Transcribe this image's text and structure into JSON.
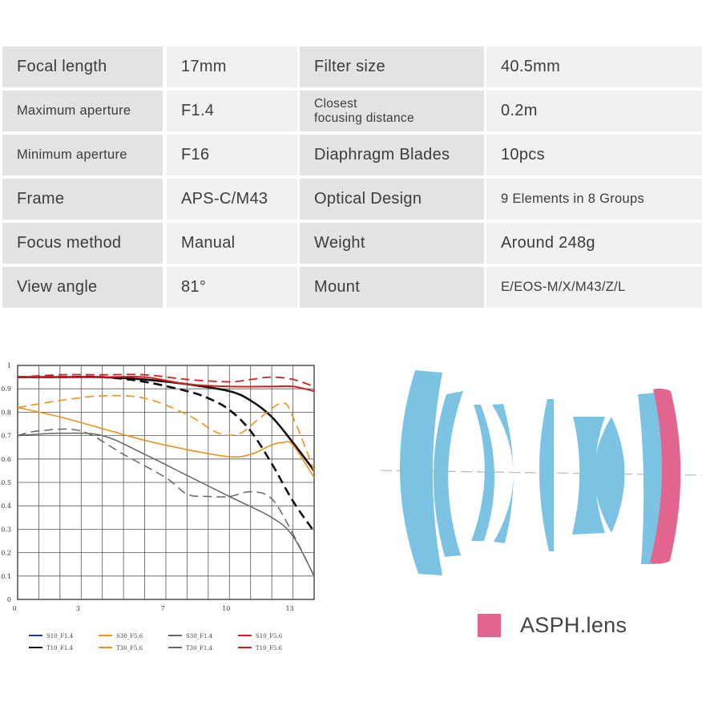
{
  "specs": [
    [
      {
        "t": "Focal length"
      },
      {
        "t": "17mm"
      },
      {
        "t": "Filter size"
      },
      {
        "t": "40.5mm"
      }
    ],
    [
      {
        "t": "Maximum aperture",
        "s": 1
      },
      {
        "t": "F1.4"
      },
      {
        "t": "Closest\nfocusing distance",
        "m": 1
      },
      {
        "t": "0.2m"
      }
    ],
    [
      {
        "t": "Minimum aperture",
        "s": 1
      },
      {
        "t": "F16"
      },
      {
        "t": "Diaphragm Blades"
      },
      {
        "t": "10pcs"
      }
    ],
    [
      {
        "t": "Frame"
      },
      {
        "t": "APS-C/M43"
      },
      {
        "t": "Optical Design"
      },
      {
        "t": "9 Elements in 8 Groups",
        "s": 1
      }
    ],
    [
      {
        "t": "Focus method"
      },
      {
        "t": "Manual"
      },
      {
        "t": "Weight"
      },
      {
        "t": "Around 248g"
      }
    ],
    [
      {
        "t": "View angle"
      },
      {
        "t": "81°"
      },
      {
        "t": "Mount"
      },
      {
        "t": "E/EOS-M/X/M43/Z/L",
        "s": 1
      }
    ]
  ],
  "colors": {
    "cell_dark": "#e3e3e3",
    "cell_light": "#f1f1f1",
    "lens_blue": "#7cc3e3",
    "asph_pink": "#e2658f"
  },
  "chart_data": {
    "type": "line",
    "title": "",
    "xlabel": "",
    "ylabel": "",
    "xlim": [
      0,
      14
    ],
    "ylim": [
      0,
      1
    ],
    "x_ticks": [
      "0",
      "3",
      "7",
      "10",
      "13"
    ],
    "x_tick_values": [
      0,
      3,
      7,
      10,
      13
    ],
    "y_ticks": [
      "0",
      "0.1",
      "0.2",
      "0.3",
      "0.4",
      "0.5",
      "0.6",
      "0.7",
      "0.8",
      "0.9",
      "1"
    ],
    "series": [
      {
        "name": "S10_F1.4",
        "color": "#111111",
        "dash": false,
        "width": 2.6,
        "x": [
          0,
          2,
          4,
          6,
          8,
          10,
          11,
          12,
          13,
          14
        ],
        "y": [
          0.95,
          0.95,
          0.95,
          0.94,
          0.92,
          0.89,
          0.85,
          0.78,
          0.67,
          0.55
        ]
      },
      {
        "name": "T10_F1.4",
        "color": "#111111",
        "dash": true,
        "width": 2.6,
        "x": [
          0,
          2,
          4,
          6,
          8,
          9,
          10,
          11,
          12,
          13,
          14
        ],
        "y": [
          0.95,
          0.95,
          0.95,
          0.93,
          0.89,
          0.86,
          0.81,
          0.72,
          0.58,
          0.42,
          0.29
        ]
      },
      {
        "name": "S30_F5.6",
        "color": "#f0901e",
        "dash": false,
        "width": 1.6,
        "x": [
          0,
          2,
          4,
          6,
          8,
          10,
          11,
          12,
          12.5,
          13,
          14
        ],
        "y": [
          0.82,
          0.78,
          0.73,
          0.68,
          0.64,
          0.61,
          0.62,
          0.66,
          0.67,
          0.66,
          0.52
        ]
      },
      {
        "name": "T30_F5.6",
        "color": "#f0901e",
        "dash": true,
        "width": 1.6,
        "x": [
          0,
          2,
          4,
          6,
          8,
          9.5,
          10.5,
          11.5,
          12.5,
          13,
          14
        ],
        "y": [
          0.82,
          0.85,
          0.87,
          0.86,
          0.79,
          0.71,
          0.71,
          0.78,
          0.84,
          0.78,
          0.55
        ]
      },
      {
        "name": "S30_F1.4",
        "color": "#666666",
        "dash": false,
        "width": 1.5,
        "x": [
          0,
          2,
          4,
          6,
          8,
          10,
          12,
          13,
          14
        ],
        "y": [
          0.7,
          0.71,
          0.7,
          0.62,
          0.53,
          0.44,
          0.35,
          0.27,
          0.1
        ]
      },
      {
        "name": "T30_F1.4",
        "color": "#666666",
        "dash": true,
        "width": 1.5,
        "x": [
          0,
          1,
          3,
          5,
          7,
          8,
          9,
          10,
          11,
          12,
          13,
          14
        ],
        "y": [
          0.7,
          0.72,
          0.72,
          0.62,
          0.52,
          0.45,
          0.44,
          0.44,
          0.46,
          0.43,
          0.28,
          0.1
        ]
      },
      {
        "name": "S10_F5.6",
        "color": "#d22020",
        "dash": false,
        "width": 2.0,
        "x": [
          0,
          2,
          4,
          6,
          8,
          10,
          12,
          13,
          14
        ],
        "y": [
          0.95,
          0.95,
          0.95,
          0.95,
          0.92,
          0.91,
          0.91,
          0.91,
          0.89
        ]
      },
      {
        "name": "T10_F5.6",
        "color": "#d22020",
        "dash": true,
        "width": 1.8,
        "x": [
          0,
          2,
          4,
          6,
          8,
          10,
          11,
          12,
          13,
          14
        ],
        "y": [
          0.95,
          0.96,
          0.96,
          0.96,
          0.94,
          0.93,
          0.94,
          0.95,
          0.94,
          0.91
        ]
      }
    ],
    "legend": [
      {
        "label": "S10_F1.4",
        "color": "#1a3a8a",
        "dash": false
      },
      {
        "label": "S30_F5.6",
        "color": "#f0901e",
        "dash": false
      },
      {
        "label": "S30_F1.4",
        "color": "#666666",
        "dash": false
      },
      {
        "label": "S10_F5.6",
        "color": "#d22020",
        "dash": false
      },
      {
        "label": "T10_F1.4",
        "color": "#111111",
        "dash": false
      },
      {
        "label": "T30_F5.6",
        "color": "#f0901e",
        "dash": false
      },
      {
        "label": "T30_F1.4",
        "color": "#666666",
        "dash": false
      },
      {
        "label": "T10_F5.6",
        "color": "#d22020",
        "dash": false
      }
    ]
  },
  "asph": {
    "label": "ASPH.lens"
  }
}
